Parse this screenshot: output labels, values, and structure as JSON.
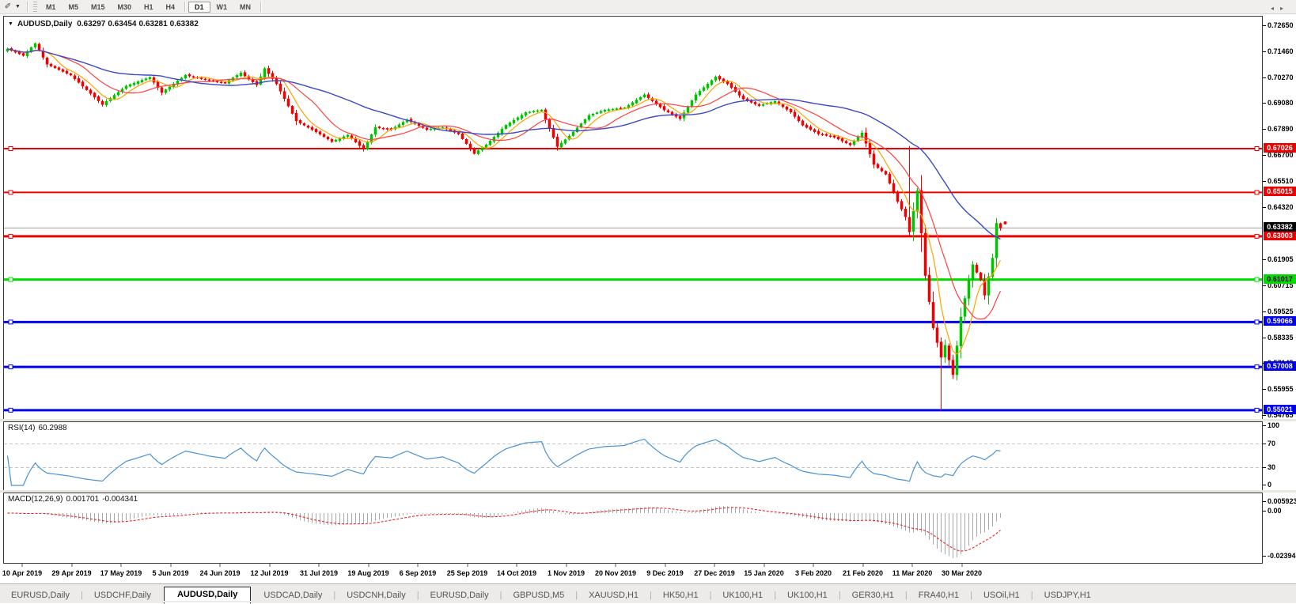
{
  "toolbar": {
    "tool_icon": "pointer-pen-icon",
    "dropdown_icon": "chevron-down-icon",
    "timeframes": [
      {
        "label": "M1",
        "active": false
      },
      {
        "label": "M5",
        "active": false
      },
      {
        "label": "M15",
        "active": false
      },
      {
        "label": "M30",
        "active": false
      },
      {
        "label": "H1",
        "active": false
      },
      {
        "label": "H4",
        "active": false
      },
      {
        "label": "D1",
        "active": true
      },
      {
        "label": "W1",
        "active": false
      },
      {
        "label": "MN",
        "active": false
      }
    ]
  },
  "chart": {
    "dropdown_icon": "chart-dropdown-icon",
    "title": "AUDUSD,Daily",
    "open": "0.63297",
    "high": "0.63454",
    "low": "0.63281",
    "close": "0.63382"
  },
  "rsi": {
    "label": "RSI(14)",
    "value": "60.2988",
    "axis_labels": [
      {
        "text": "100",
        "v": 100
      },
      {
        "text": "70",
        "v": 70
      },
      {
        "text": "30",
        "v": 30
      },
      {
        "text": "0",
        "v": 0
      }
    ],
    "levels": [
      70,
      30
    ],
    "line_color": "#4893d4"
  },
  "macd": {
    "label": "MACD(12,26,9)",
    "value_main": "0.001701",
    "value_signal": "-0.004341",
    "axis_labels": [
      {
        "text": "0.005923",
        "y": 634
      },
      {
        "text": "0.00",
        "y": 646
      },
      {
        "text": "-0.02394",
        "y": 703
      }
    ],
    "histogram_color": "#a8a8a8",
    "signal_color": "#ee1111"
  },
  "price_axis": {
    "ticks": [
      "0.72650",
      "0.71460",
      "0.70270",
      "0.69080",
      "0.67890",
      "0.66700",
      "0.65510",
      "0.64320",
      "0.61905",
      "0.60715",
      "0.59525",
      "0.58335",
      "0.57145",
      "0.55955",
      "0.54765"
    ],
    "tick_prices": [
      0.7265,
      0.7146,
      0.7027,
      0.6908,
      0.6789,
      0.667,
      0.6551,
      0.6432,
      0.61905,
      0.60715,
      0.59525,
      0.58335,
      0.57145,
      0.55955,
      0.54765
    ]
  },
  "date_axis": {
    "labels": [
      "10 Apr 2019",
      "29 Apr 2019",
      "17 May 2019",
      "5 Jun 2019",
      "24 Jun 2019",
      "12 Jul 2019",
      "31 Jul 2019",
      "19 Aug 2019",
      "6 Sep 2019",
      "25 Sep 2019",
      "14 Oct 2019",
      "1 Nov 2019",
      "20 Nov 2019",
      "9 Dec 2019",
      "27 Dec 2019",
      "15 Jan 2020",
      "3 Feb 2020",
      "21 Feb 2020",
      "11 Mar 2020",
      "30 Mar 2020"
    ]
  },
  "tabs": {
    "items": [
      {
        "label": "EURUSD,Daily",
        "active": false
      },
      {
        "label": "USDCHF,Daily",
        "active": false
      },
      {
        "label": "AUDUSD,Daily",
        "active": true
      },
      {
        "label": "USDCAD,Daily",
        "active": false
      },
      {
        "label": "USDCNH,Daily",
        "active": false
      },
      {
        "label": "EURUSD,Daily",
        "active": false
      },
      {
        "label": "GBPUSD,M5",
        "active": false
      },
      {
        "label": "XAUUSD,H1",
        "active": false
      },
      {
        "label": "HK50,H1",
        "active": false
      },
      {
        "label": "UK100,H1",
        "active": false
      },
      {
        "label": "UK100,H1",
        "active": false
      },
      {
        "label": "GER30,H1",
        "active": false
      },
      {
        "label": "FRA40,H1",
        "active": false
      },
      {
        "label": "USOil,H1",
        "active": false
      },
      {
        "label": "USDJPY,H1",
        "active": false
      }
    ],
    "nav_prev": "◂",
    "nav_next": "▸"
  },
  "chart_data": {
    "type": "candlestick",
    "symbol": "AUDUSD",
    "timeframe": "Daily",
    "last_ohlc": {
      "open": 0.63297,
      "high": 0.63454,
      "low": 0.63281,
      "close": 0.63382
    },
    "current_price": 0.63382,
    "current_price_line_color": "#b4b4b4",
    "ylim": [
      0.54765,
      0.7265
    ],
    "levels": [
      {
        "price": 0.67026,
        "color": "#ee0000",
        "width": 2,
        "tag_text": "0.67026",
        "tag_fg": "#ffffff"
      },
      {
        "price": 0.65015,
        "color": "#ee0000",
        "width": 2,
        "tag_text": "0.65015",
        "tag_fg": "#ffffff"
      },
      {
        "price": 0.63003,
        "color": "#ee0000",
        "width": 3,
        "tag_text": "0.63003",
        "tag_fg": "#ffffff"
      },
      {
        "price": 0.61017,
        "color": "#00dd00",
        "width": 3,
        "tag_text": "0.61017",
        "tag_fg": "#000000"
      },
      {
        "price": 0.59066,
        "color": "#0000ee",
        "width": 3,
        "tag_text": "0.59066",
        "tag_fg": "#ffffff"
      },
      {
        "price": 0.57008,
        "color": "#0000ee",
        "width": 3,
        "tag_text": "0.57008",
        "tag_fg": "#ffffff"
      },
      {
        "price": 0.55021,
        "color": "#0000ee",
        "width": 3,
        "tag_text": "0.55021",
        "tag_fg": "#ffffff"
      }
    ],
    "current_tag": {
      "text": "0.63382",
      "bg": "#000000",
      "fg": "#ffffff",
      "price": 0.63382
    },
    "bull_color": "#00c400",
    "bear_color": "#f00000",
    "ma_fast": {
      "period": 6,
      "color": "#ffa100"
    },
    "ma_mid": {
      "period": 14,
      "color": "#ff4040"
    },
    "ma_slow": {
      "period": 40,
      "color": "#3b49c6"
    },
    "n_candles": 252,
    "seed": 42,
    "close_anchors": [
      [
        0,
        0.716
      ],
      [
        4,
        0.713
      ],
      [
        7,
        0.7185
      ],
      [
        10,
        0.709
      ],
      [
        16,
        0.704
      ],
      [
        24,
        0.6905
      ],
      [
        30,
        0.699
      ],
      [
        36,
        0.703
      ],
      [
        39,
        0.696
      ],
      [
        45,
        0.704
      ],
      [
        51,
        0.7015
      ],
      [
        55,
        0.7005
      ],
      [
        59,
        0.705
      ],
      [
        63,
        0.6995
      ],
      [
        65,
        0.707
      ],
      [
        68,
        0.7
      ],
      [
        73,
        0.683
      ],
      [
        78,
        0.678
      ],
      [
        82,
        0.6735
      ],
      [
        86,
        0.6765
      ],
      [
        90,
        0.67
      ],
      [
        93,
        0.68
      ],
      [
        97,
        0.679
      ],
      [
        101,
        0.6835
      ],
      [
        106,
        0.679
      ],
      [
        110,
        0.68
      ],
      [
        114,
        0.677
      ],
      [
        118,
        0.668
      ],
      [
        121,
        0.672
      ],
      [
        126,
        0.681
      ],
      [
        131,
        0.6868
      ],
      [
        135,
        0.688
      ],
      [
        139,
        0.6712
      ],
      [
        142,
        0.676
      ],
      [
        147,
        0.6855
      ],
      [
        151,
        0.688
      ],
      [
        156,
        0.689
      ],
      [
        161,
        0.695
      ],
      [
        166,
        0.688
      ],
      [
        170,
        0.684
      ],
      [
        174,
        0.695
      ],
      [
        179,
        0.7032
      ],
      [
        182,
        0.7
      ],
      [
        186,
        0.693
      ],
      [
        190,
        0.69
      ],
      [
        194,
        0.692
      ],
      [
        198,
        0.687
      ],
      [
        201,
        0.681
      ],
      [
        205,
        0.677
      ],
      [
        209,
        0.6755
      ],
      [
        213,
        0.672
      ],
      [
        216,
        0.6775
      ],
      [
        219,
        0.663
      ],
      [
        222,
        0.6585
      ],
      [
        225,
        0.646
      ],
      [
        227,
        0.639
      ],
      [
        228,
        0.632
      ],
      [
        230,
        0.651
      ],
      [
        232,
        0.612
      ],
      [
        234,
        0.588
      ],
      [
        236,
        0.5745
      ],
      [
        237,
        0.58
      ],
      [
        239,
        0.5665
      ],
      [
        241,
        0.593
      ],
      [
        243,
        0.61
      ],
      [
        244,
        0.617
      ],
      [
        246,
        0.61
      ],
      [
        247,
        0.603
      ],
      [
        249,
        0.62
      ],
      [
        250,
        0.636
      ],
      [
        251,
        0.6338
      ]
    ],
    "wick_overrides": [
      {
        "i": 236,
        "low": 0.5502
      },
      {
        "i": 228,
        "high": 0.6715
      }
    ],
    "marker_dot": {
      "color": "#ee0000",
      "price": 0.6362
    }
  }
}
